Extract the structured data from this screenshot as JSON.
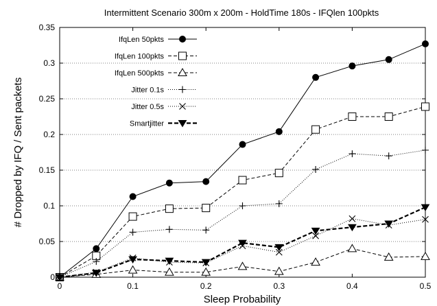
{
  "chart_data": {
    "type": "line",
    "title": "Intermittent Scenario 300m x 200m - HoldTime 180s - IFQlen 100pkts",
    "xlabel": "Sleep Probability",
    "ylabel": "# Dropped by IFQ / Sent packets",
    "xlim": [
      0,
      0.5
    ],
    "ylim": [
      0,
      0.35
    ],
    "grid": "horizontal dotted",
    "legend_position": "top-left",
    "xticks": [
      "0",
      "0.1",
      "0.2",
      "0.3",
      "0.4",
      "0.5"
    ],
    "yticks": [
      "0",
      "0.05",
      "0.1",
      "0.15",
      "0.2",
      "0.25",
      "0.3",
      "0.35"
    ],
    "x": [
      0,
      0.05,
      0.1,
      0.15,
      0.2,
      0.25,
      0.3,
      0.35,
      0.4,
      0.45,
      0.5
    ],
    "series": [
      {
        "name": "IfqLen 50pkts",
        "marker": "filled-circle",
        "line": "solid",
        "values": [
          0,
          0.04,
          0.113,
          0.132,
          0.134,
          0.186,
          0.204,
          0.28,
          0.296,
          0.305,
          0.327
        ]
      },
      {
        "name": "IfqLen 100pkts",
        "marker": "open-square",
        "line": "dashed",
        "values": [
          0,
          0.03,
          0.085,
          0.096,
          0.097,
          0.136,
          0.146,
          0.207,
          0.225,
          0.225,
          0.239
        ]
      },
      {
        "name": "IfqLen 500pkts",
        "marker": "open-triangle",
        "line": "dashed",
        "values": [
          0,
          0.004,
          0.01,
          0.007,
          0.007,
          0.015,
          0.008,
          0.021,
          0.04,
          0.028,
          0.029
        ]
      },
      {
        "name": "Jitter 0.1s",
        "marker": "plus",
        "line": "dotted",
        "values": [
          0,
          0.022,
          0.063,
          0.067,
          0.066,
          0.1,
          0.103,
          0.151,
          0.173,
          0.17,
          0.178
        ]
      },
      {
        "name": "Jitter 0.5s",
        "marker": "x",
        "line": "dotted",
        "values": [
          0,
          0.007,
          0.027,
          0.021,
          0.02,
          0.044,
          0.035,
          0.058,
          0.082,
          0.073,
          0.081
        ]
      },
      {
        "name": "Smartjitter",
        "marker": "filled-triangle-down",
        "line": "bold-dashed",
        "values": [
          0,
          0.006,
          0.025,
          0.023,
          0.021,
          0.048,
          0.042,
          0.065,
          0.07,
          0.075,
          0.098
        ]
      }
    ]
  }
}
